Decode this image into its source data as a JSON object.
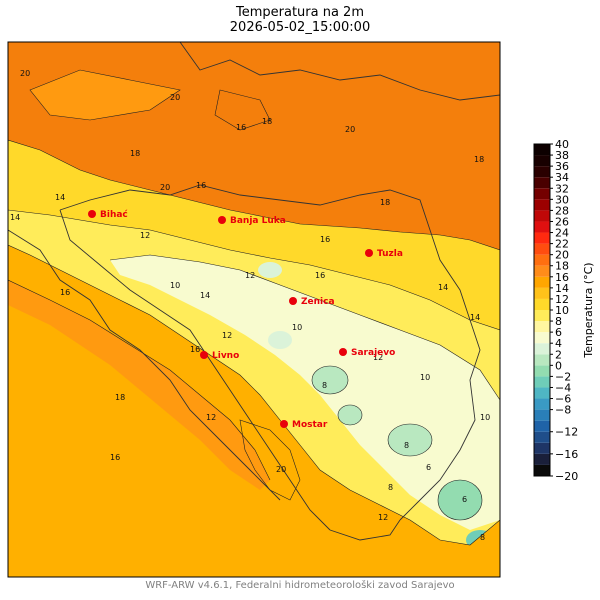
{
  "title_line1": "Temperatura na 2m",
  "title_line2": "2026-05-02_15:00:00",
  "footer": "WRF-ARW v4.6.1, Federalni hidrometeorološki zavod Sarajevo",
  "colorbar": {
    "label": "Temperatura (°C)",
    "min": -20,
    "max": 40,
    "step": 2,
    "tick_labels": [
      "−20",
      "−16",
      "−12",
      "−8",
      "−6",
      "−4",
      "−2",
      "0",
      "2",
      "4",
      "6",
      "8",
      "10",
      "12",
      "14",
      "16",
      "18",
      "20",
      "22",
      "24",
      "26",
      "28",
      "30",
      "32",
      "34",
      "36",
      "38",
      "40"
    ],
    "colors": [
      "#0a0a0a",
      "#1a1f3a",
      "#1e3566",
      "#1f4e8a",
      "#1f63a8",
      "#2a7fb8",
      "#3a9ac4",
      "#4fb6c4",
      "#6fcdb8",
      "#93dcb0",
      "#b9e8c0",
      "#dbf3d9",
      "#f8fbcf",
      "#fff6a0",
      "#ffec5a",
      "#ffd92a",
      "#ffc21a",
      "#ffa600",
      "#ff8c1a",
      "#ff6f10",
      "#ff4d10",
      "#ff2a10",
      "#e01010",
      "#c00808",
      "#9c0000",
      "#740000",
      "#4a0000",
      "#2a0000",
      "#180000",
      "#0d0000"
    ]
  },
  "cities": [
    {
      "name": "Bihać"
    },
    {
      "name": "Banja Luka"
    },
    {
      "name": "Tuzla"
    },
    {
      "name": "Zenica"
    },
    {
      "name": "Sarajevo"
    },
    {
      "name": "Livno"
    },
    {
      "name": "Mostar"
    }
  ],
  "contour_labels": [
    "20",
    "16",
    "18",
    "20",
    "18",
    "16",
    "20",
    "18",
    "16",
    "14",
    "12",
    "12",
    "16",
    "14",
    "12",
    "10",
    "8",
    "6",
    "8",
    "10",
    "12",
    "14",
    "16",
    "18",
    "20",
    "12",
    "10",
    "8",
    "6",
    "8",
    "10",
    "12",
    "14",
    "16",
    "20",
    "18",
    "16",
    "14"
  ],
  "colors": {
    "city_marker": "#e8000b",
    "city_label": "#e8000b",
    "sea": "#ffb000",
    "lowland": "#f47f0c"
  }
}
